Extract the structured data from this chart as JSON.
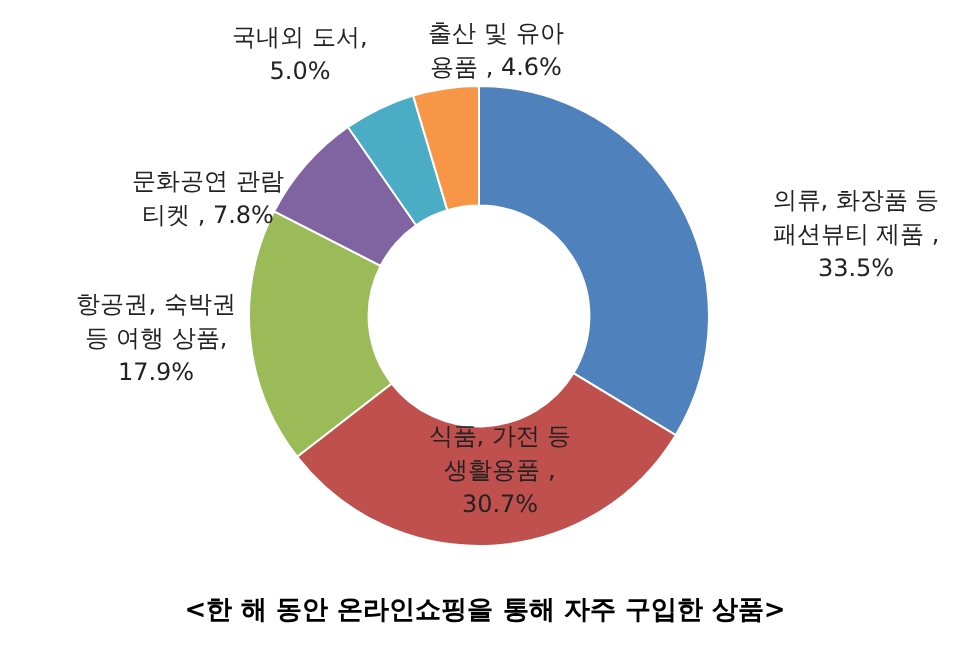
{
  "chart_data": {
    "type": "donut",
    "title": "<한 해 동안 온라인쇼핑을 통해 자주 구입한 상품>",
    "categories": [
      "의류, 화장품 등 패션뷰티 제품",
      "식품, 가전 등 생활용품",
      "항공권, 숙박권 등 여행 상품",
      "문화공연 관람 티켓",
      "국내외 도서",
      "출산 및 유아 용품"
    ],
    "values": [
      33.5,
      30.7,
      17.9,
      7.8,
      5.0,
      4.6
    ],
    "value_labels": [
      " , 33.5%",
      " , 30.7%",
      ", 17.9%",
      " , 7.8%",
      ", 5.0%",
      " , 4.6%"
    ],
    "colors": [
      "#4f81bd",
      "#c0504d",
      "#9bbb59",
      "#8064a2",
      "#4bacc6",
      "#f79646"
    ],
    "legend": false
  }
}
